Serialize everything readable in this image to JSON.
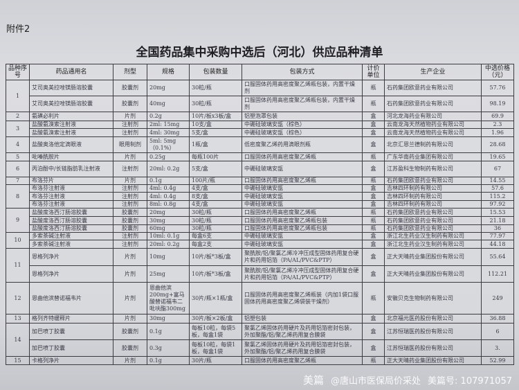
{
  "attachment_label": "附件2",
  "title": "全国药品集中采购中选后（河北）供应品种清单",
  "headers": [
    "品种序号",
    "药品通用名",
    "剂型",
    "规格",
    "包装数量",
    "包装方式",
    "计价单位",
    "生产企业",
    "中选价格（元）"
  ],
  "groups": [
    {
      "no": "1",
      "items": [
        {
          "name": "艾司奥美拉唑镁肠溶胶囊",
          "form": "胶囊剂",
          "spec": "20mg",
          "qty": "30粒/瓶",
          "pack": "口服固体药用高密度聚乙烯瓶包装，内置干燥剂",
          "unit": "瓶",
          "maker": "石药集团欧意药业有限公司",
          "price": "57.76"
        },
        {
          "name": "艾司奥美拉唑镁肠溶胶囊",
          "form": "胶囊剂",
          "spec": "40mg",
          "qty": "30粒/瓶",
          "pack": "口服固体药用高密度聚乙烯瓶包装，内置干燥剂",
          "unit": "瓶",
          "maker": "石药集团欧意药业有限公司",
          "price": "98.19"
        }
      ]
    },
    {
      "no": "2",
      "items": [
        {
          "name": "氨磺必利片",
          "form": "片剂",
          "spec": "0.2g",
          "qty": "10片/板x3板/盒",
          "pack": "铝塑泡罩包装",
          "unit": "盒",
          "maker": "河北龙海药业有限公司",
          "price": "69.9"
        }
      ]
    },
    {
      "no": "3",
      "items": [
        {
          "name": "盐酸氨溴索注射液",
          "form": "注射剂",
          "spec": "2ml: 15mg",
          "qty": "10支/盒",
          "pack": "中硼硅玻璃安瓿（棕色）",
          "unit": "盒",
          "maker": "云南龙海天然植物药业有限公司",
          "price": "2.3"
        },
        {
          "name": "盐酸氨溴索注射液",
          "form": "注射剂",
          "spec": "4ml: 30mg",
          "qty": "5支/盒",
          "pack": "中硼硅玻璃安瓿（棕色）",
          "unit": "盒",
          "maker": "云南龙海天然植物药业有限公司",
          "price": "1.96"
        }
      ]
    },
    {
      "no": "4",
      "items": [
        {
          "name": "盐酸奥洛他定滴眼液",
          "form": "眼用制剂",
          "spec": "5ml: 5mg（0.1%）",
          "qty": "1瓶/盒",
          "pack": "低密度聚乙烯药用滴眼剂瓶",
          "unit": "盒",
          "maker": "北京汇恩兰德制药有限公司",
          "price": "28.68"
        }
      ]
    },
    {
      "no": "5",
      "items": [
        {
          "name": "吡嗪酰胺片",
          "form": "片剂",
          "spec": "0.25g",
          "qty": "每瓶100片",
          "pack": "口服固体药用高密度聚乙烯瓶",
          "unit": "瓶",
          "maker": "广东华南药业集团有限公司",
          "price": "19.65"
        }
      ]
    },
    {
      "no": "6",
      "items": [
        {
          "name": "丙泊酚中/长链脂肪乳注射液",
          "form": "注射剂",
          "spec": "20ml: 0.2g",
          "qty": "5支/盒",
          "pack": "中硼硅玻璃安瓿",
          "unit": "盒",
          "maker": "江苏盈科生物制药有限公司",
          "price": "67"
        }
      ]
    },
    {
      "no": "7",
      "items": [
        {
          "name": "布洛芬片",
          "form": "片剂",
          "spec": "0.1g",
          "qty": "100片/瓶",
          "pack": "口服固体药用高密度聚乙烯瓶",
          "unit": "瓶",
          "maker": "石药集团欧意药业有限公司",
          "price": "14.55"
        }
      ]
    },
    {
      "no": "8",
      "items": [
        {
          "name": "布洛芬注射液",
          "form": "注射剂",
          "spec": "4ml: 0.4g",
          "qty": "4支/盒",
          "pack": "中硼硅玻璃安瓿",
          "unit": "盒",
          "maker": "吉林四环制药有限公司",
          "price": "57.6"
        },
        {
          "name": "布洛芬注射液",
          "form": "注射剂",
          "spec": "4ml: 0.4g",
          "qty": "8支/盒",
          "pack": "中硼硅玻璃安瓿",
          "unit": "盒",
          "maker": "吉林四环制药有限公司",
          "price": "115.2"
        },
        {
          "name": "布洛芬注射液",
          "form": "注射剂",
          "spec": "8ml: 0.8g",
          "qty": "4支/盒",
          "pack": "中硼硅玻璃安瓿",
          "unit": "盒",
          "maker": "吉林四环制药有限公司",
          "price": "97.92"
        }
      ]
    },
    {
      "no": "9",
      "items": [
        {
          "name": "盐酸度洛西汀肠溶胶囊",
          "form": "胶囊剂",
          "spec": "20mg",
          "qty": "30粒/瓶",
          "pack": "口服固体药用高密度聚乙烯瓶",
          "unit": "瓶",
          "maker": "石药集团欧意药业有限公司",
          "price": "15.53"
        },
        {
          "name": "盐酸度洛西汀肠溶胶囊",
          "form": "胶囊剂",
          "spec": "30mg",
          "qty": "30粒/瓶",
          "pack": "口服固体药用高密度聚乙烯瓶包装",
          "unit": "瓶",
          "maker": "石药集团欧意药业有限公司",
          "price": "21.18"
        },
        {
          "name": "盐酸度洛西汀肠溶胶囊",
          "form": "胶囊剂",
          "spec": "60mg",
          "qty": "30粒/瓶",
          "pack": "口服固体药用高密度聚乙烯瓶包装",
          "unit": "瓶",
          "maker": "石药集团欧意药业有限公司",
          "price": "36"
        }
      ]
    },
    {
      "no": "10",
      "items": [
        {
          "name": "多索茶碱注射液",
          "form": "注射剂",
          "spec": "10ml: 0.1g",
          "qty": "每盒6支",
          "pack": "中硼硅玻璃安瓿",
          "unit": "盒",
          "maker": "浙江北生药业汉生制药有限公司",
          "price": "77.97"
        },
        {
          "name": "多索茶碱注射液",
          "form": "注射剂",
          "spec": "20ml: 0.2g",
          "qty": "每盒2支",
          "pack": "中硼硅玻璃安瓿",
          "unit": "盒",
          "maker": "浙江北生药业汉生制药有限公司",
          "price": "44.18"
        }
      ]
    },
    {
      "no": "11",
      "items": [
        {
          "name": "恩格列净片",
          "form": "片剂",
          "spec": "10mg",
          "qty": "10片/板*3板/盒",
          "pack": "聚酰胺/铝/聚氯乙烯冷冲压成型固体药用复合硬片和药用铝箔（PA/AL/PVC&PTP）",
          "unit": "盒",
          "maker": "正大天晴药业集团股份有限公司",
          "price": "55.64"
        },
        {
          "name": "恩格列净片",
          "form": "片剂",
          "spec": "25mg",
          "qty": "10片/板*3板/盒",
          "pack": "聚酰胺/铝/聚氯乙烯冷冲压成型固体药用复合硬片和药用铝箔（PA/AL/PVC&PTP）",
          "unit": "盒",
          "maker": "正大天晴药业集团股份有限公司",
          "price": "112.21"
        }
      ]
    },
    {
      "no": "12",
      "items": [
        {
          "name": "恩曲他滨替诺福韦片",
          "form": "片剂",
          "spec": "恩曲他滨200mg+富马酸替诺福韦二吡呋酯300mg",
          "qty": "30片/瓶×1瓶/盒",
          "pack": "口服固体药用高密度聚乙烯瓶装（内加1袋口服固体药用高密度聚乙烯袋装干燥剂）",
          "unit": "瓶",
          "maker": "安徽贝克生物制药有限公司",
          "price": "249"
        }
      ]
    },
    {
      "no": "13",
      "items": [
        {
          "name": "格列齐特缓释片",
          "form": "片剂",
          "spec": "30mg",
          "qty": "30片/板×2板/盒",
          "pack": "铝塑包装",
          "unit": "盒",
          "maker": "北京福元医药股份有限公司",
          "price": "36.88"
        }
      ]
    },
    {
      "no": "14",
      "items": [
        {
          "name": "加巴喷丁胶囊",
          "form": "胶囊剂",
          "spec": "0.1g",
          "qty": "每板10粒，每袋5板，每盒1袋",
          "pack": "聚氯乙烯固体药用硬片及药用铝箔密封包装，外加聚酯/铝/聚乙烯药用复合膜袋",
          "unit": "盒",
          "maker": "江苏恒瑞医药股份有限公司",
          "price": "6"
        },
        {
          "name": "加巴喷丁胶囊",
          "form": "胶囊剂",
          "spec": "0.3g",
          "qty": "每板10粒，每袋1板，每盒1袋",
          "pack": "聚氯乙烯固体药用硬片及药用铝箔密封包装，外加聚酯/铝/聚乙烯药用复合膜袋",
          "unit": "盒",
          "maker": "江苏恒瑞医药股份有限公司",
          "price": "3."
        }
      ]
    },
    {
      "no": "15",
      "items": [
        {
          "name": "卡格列净片",
          "form": "片剂",
          "spec": "0.1g",
          "qty": "30片/瓶",
          "pack": "口服固体药用高密度聚乙烯瓶",
          "unit": "瓶",
          "maker": "正大天晴药业集团股份有限公司",
          "price": "52.99"
        }
      ]
    }
  ],
  "watermark": {
    "brand": "美篇",
    "account": "@唐山市医保局价采处",
    "id": "美篇号: 107971057"
  }
}
